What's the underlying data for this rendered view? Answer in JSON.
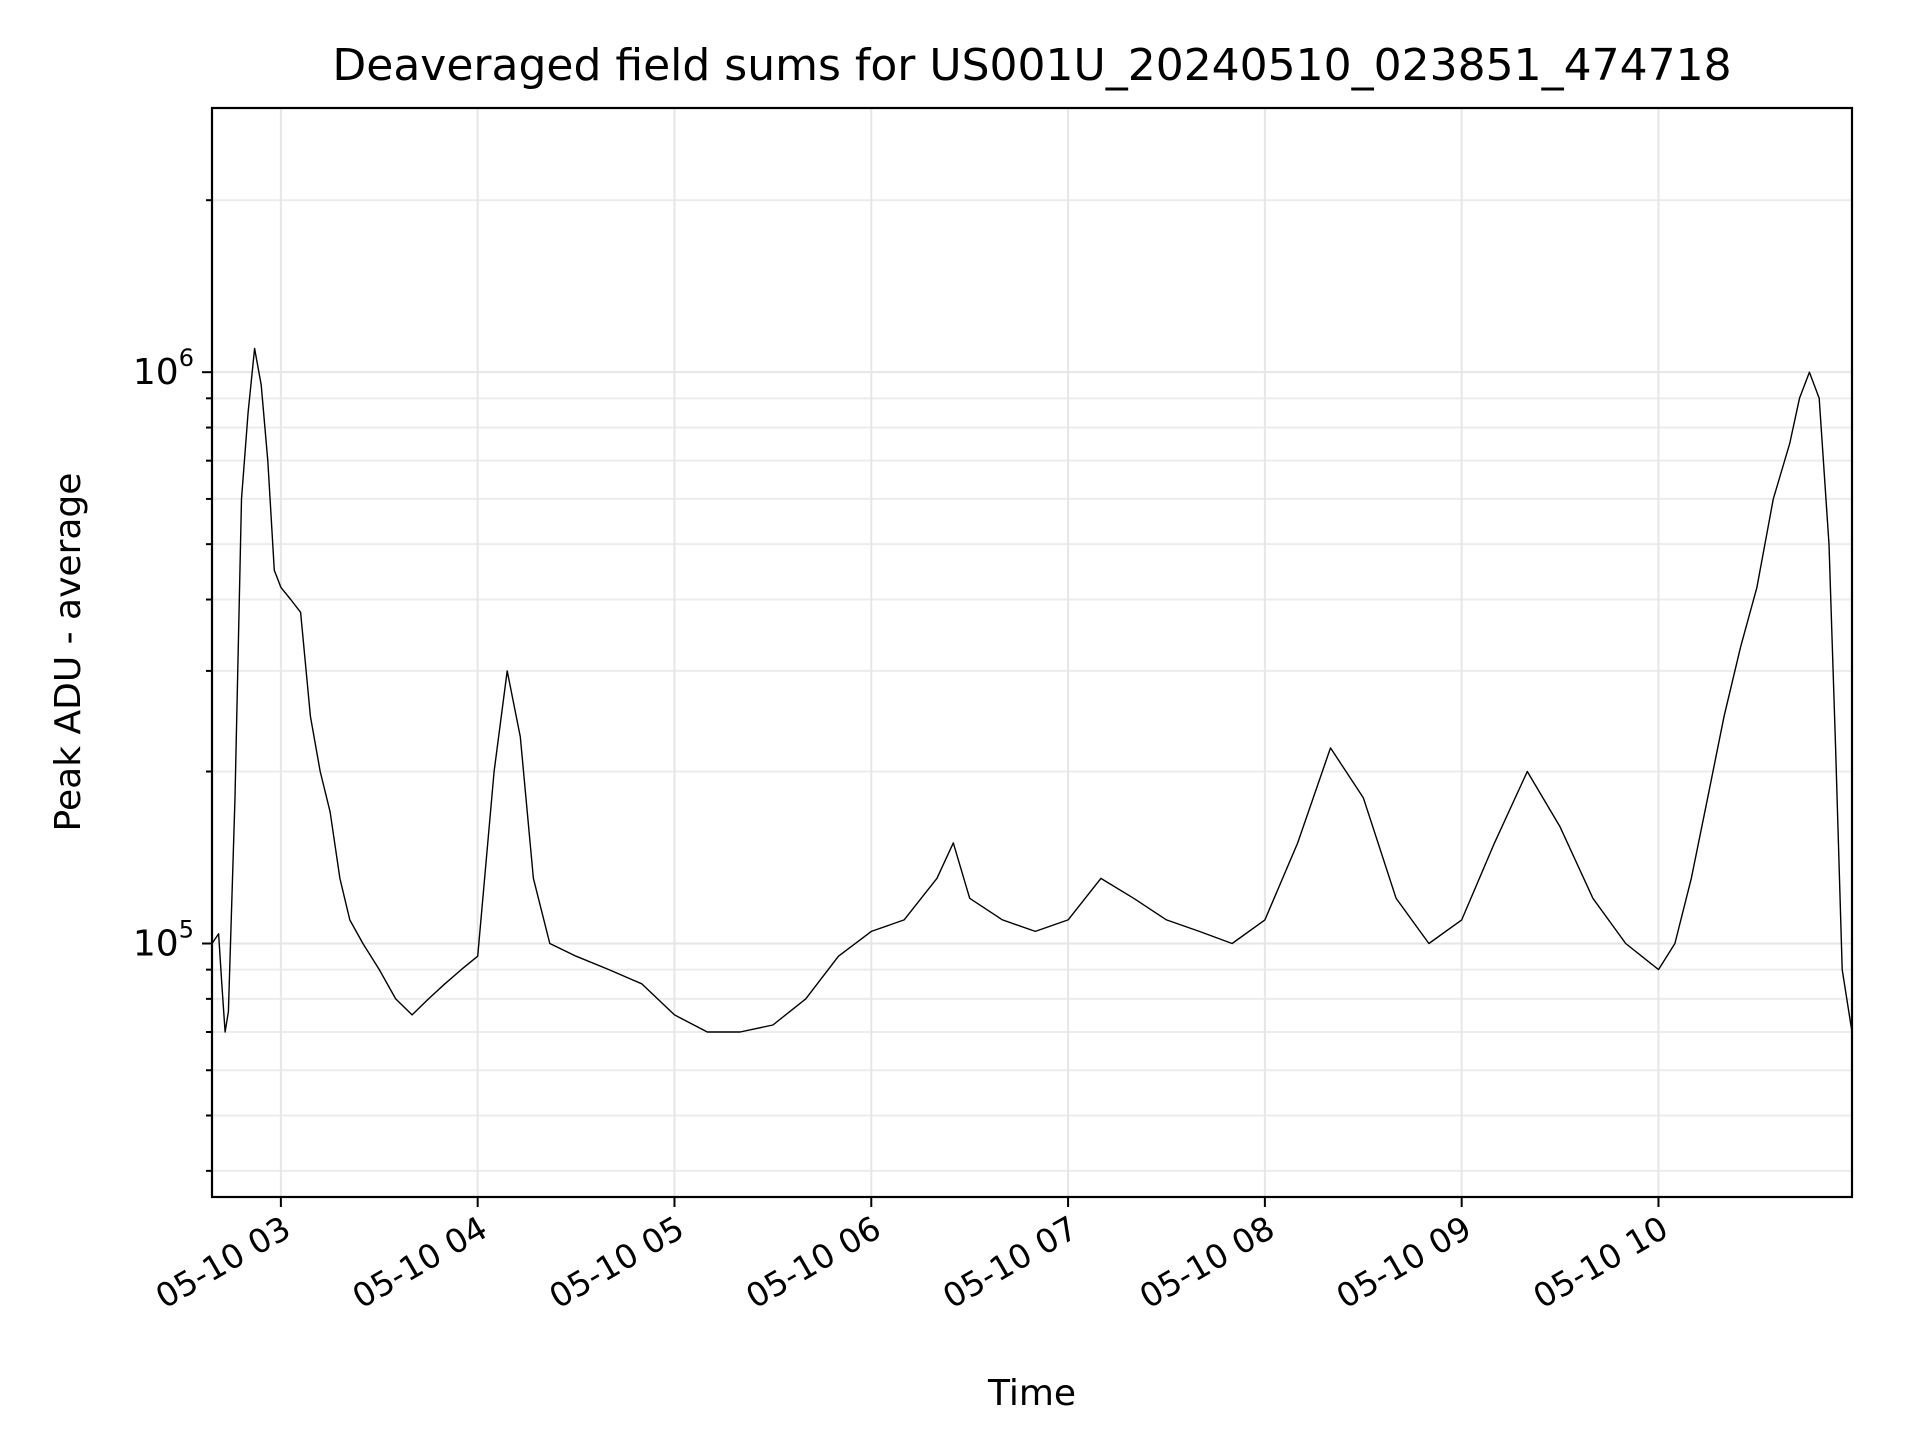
{
  "chart_data": {
    "type": "line",
    "title": "Deaveraged field sums for US001U_20240510_023851_474718",
    "xlabel": "Time",
    "ylabel": "Peak ADU - average",
    "yscale": "log",
    "grid": true,
    "x_tick_labels": [
      "05-10 03",
      "05-10 04",
      "05-10 05",
      "05-10 06",
      "05-10 07",
      "05-10 08",
      "05-10 09",
      "05-10 10"
    ],
    "x_ticks": [
      "2024-05-10 03:00",
      "2024-05-10 04:00",
      "2024-05-10 05:00",
      "2024-05-10 06:00",
      "2024-05-10 07:00",
      "2024-05-10 08:00",
      "2024-05-10 09:00",
      "2024-05-10 10:00"
    ],
    "xlim": [
      "2024-05-10 02:39",
      "2024-05-10 10:59"
    ],
    "ylim": [
      36000,
      2900000
    ],
    "y_tick_labels": [
      {
        "base": "10",
        "exp": "5",
        "value": 100000
      },
      {
        "base": "10",
        "exp": "6",
        "value": 1000000
      }
    ],
    "series": [
      {
        "color": "#000000",
        "points": [
          [
            "2024-05-10 02:39",
            100000
          ],
          [
            "2024-05-10 02:41",
            104000
          ],
          [
            "2024-05-10 02:42",
            85000
          ],
          [
            "2024-05-10 02:43",
            70000
          ],
          [
            "2024-05-10 02:44",
            76000
          ],
          [
            "2024-05-10 02:46",
            180000
          ],
          [
            "2024-05-10 02:48",
            600000
          ],
          [
            "2024-05-10 02:50",
            850000
          ],
          [
            "2024-05-10 02:52",
            1100000
          ],
          [
            "2024-05-10 02:54",
            950000
          ],
          [
            "2024-05-10 02:56",
            700000
          ],
          [
            "2024-05-10 02:58",
            450000
          ],
          [
            "2024-05-10 03:00",
            420000
          ],
          [
            "2024-05-10 03:03",
            400000
          ],
          [
            "2024-05-10 03:06",
            380000
          ],
          [
            "2024-05-10 03:09",
            250000
          ],
          [
            "2024-05-10 03:12",
            200000
          ],
          [
            "2024-05-10 03:15",
            170000
          ],
          [
            "2024-05-10 03:18",
            130000
          ],
          [
            "2024-05-10 03:21",
            110000
          ],
          [
            "2024-05-10 03:25",
            100000
          ],
          [
            "2024-05-10 03:30",
            90000
          ],
          [
            "2024-05-10 03:35",
            80000
          ],
          [
            "2024-05-10 03:40",
            75000
          ],
          [
            "2024-05-10 03:45",
            80000
          ],
          [
            "2024-05-10 03:50",
            85000
          ],
          [
            "2024-05-10 03:55",
            90000
          ],
          [
            "2024-05-10 04:00",
            95000
          ],
          [
            "2024-05-10 04:05",
            200000
          ],
          [
            "2024-05-10 04:09",
            300000
          ],
          [
            "2024-05-10 04:13",
            230000
          ],
          [
            "2024-05-10 04:17",
            130000
          ],
          [
            "2024-05-10 04:22",
            100000
          ],
          [
            "2024-05-10 04:30",
            95000
          ],
          [
            "2024-05-10 04:40",
            90000
          ],
          [
            "2024-05-10 04:50",
            85000
          ],
          [
            "2024-05-10 05:00",
            75000
          ],
          [
            "2024-05-10 05:10",
            70000
          ],
          [
            "2024-05-10 05:20",
            70000
          ],
          [
            "2024-05-10 05:30",
            72000
          ],
          [
            "2024-05-10 05:40",
            80000
          ],
          [
            "2024-05-10 05:50",
            95000
          ],
          [
            "2024-05-10 06:00",
            105000
          ],
          [
            "2024-05-10 06:10",
            110000
          ],
          [
            "2024-05-10 06:20",
            130000
          ],
          [
            "2024-05-10 06:25",
            150000
          ],
          [
            "2024-05-10 06:30",
            120000
          ],
          [
            "2024-05-10 06:40",
            110000
          ],
          [
            "2024-05-10 06:50",
            105000
          ],
          [
            "2024-05-10 07:00",
            110000
          ],
          [
            "2024-05-10 07:10",
            130000
          ],
          [
            "2024-05-10 07:20",
            120000
          ],
          [
            "2024-05-10 07:30",
            110000
          ],
          [
            "2024-05-10 07:40",
            105000
          ],
          [
            "2024-05-10 07:50",
            100000
          ],
          [
            "2024-05-10 08:00",
            110000
          ],
          [
            "2024-05-10 08:10",
            150000
          ],
          [
            "2024-05-10 08:20",
            220000
          ],
          [
            "2024-05-10 08:30",
            180000
          ],
          [
            "2024-05-10 08:40",
            120000
          ],
          [
            "2024-05-10 08:50",
            100000
          ],
          [
            "2024-05-10 09:00",
            110000
          ],
          [
            "2024-05-10 09:10",
            150000
          ],
          [
            "2024-05-10 09:20",
            200000
          ],
          [
            "2024-05-10 09:30",
            160000
          ],
          [
            "2024-05-10 09:40",
            120000
          ],
          [
            "2024-05-10 09:50",
            100000
          ],
          [
            "2024-05-10 10:00",
            90000
          ],
          [
            "2024-05-10 10:05",
            100000
          ],
          [
            "2024-05-10 10:10",
            130000
          ],
          [
            "2024-05-10 10:15",
            180000
          ],
          [
            "2024-05-10 10:20",
            250000
          ],
          [
            "2024-05-10 10:25",
            330000
          ],
          [
            "2024-05-10 10:30",
            420000
          ],
          [
            "2024-05-10 10:35",
            600000
          ],
          [
            "2024-05-10 10:40",
            750000
          ],
          [
            "2024-05-10 10:43",
            900000
          ],
          [
            "2024-05-10 10:46",
            1000000
          ],
          [
            "2024-05-10 10:49",
            900000
          ],
          [
            "2024-05-10 10:52",
            500000
          ],
          [
            "2024-05-10 10:54",
            220000
          ],
          [
            "2024-05-10 10:56",
            90000
          ],
          [
            "2024-05-10 10:59",
            70000
          ]
        ]
      }
    ]
  }
}
